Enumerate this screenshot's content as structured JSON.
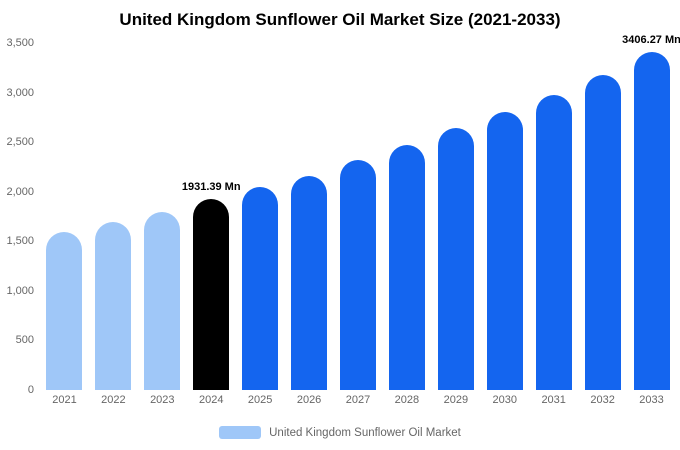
{
  "title": "United Kingdom Sunflower Oil Market Size (2021-2033)",
  "legend": {
    "label": "United Kingdom Sunflower Oil Market",
    "swatch_color": "#9fc7f8"
  },
  "colors": {
    "historical_bar": "#9fc7f8",
    "highlight_bar": "#000000",
    "forecast_bar": "#1465ef",
    "axis_text": "#666666",
    "title_text": "#000000"
  },
  "chart_data": {
    "type": "bar",
    "title": "United Kingdom Sunflower Oil Market Size (2021-2033)",
    "xlabel": "",
    "ylabel": "",
    "categories": [
      "2021",
      "2022",
      "2023",
      "2024",
      "2025",
      "2026",
      "2027",
      "2028",
      "2029",
      "2030",
      "2031",
      "2032",
      "2033"
    ],
    "values": [
      1590,
      1695,
      1800,
      1931.39,
      2045,
      2160,
      2320,
      2470,
      2640,
      2800,
      2975,
      3175,
      3406.27
    ],
    "bar_colors": [
      "#9fc7f8",
      "#9fc7f8",
      "#9fc7f8",
      "#000000",
      "#1465ef",
      "#1465ef",
      "#1465ef",
      "#1465ef",
      "#1465ef",
      "#1465ef",
      "#1465ef",
      "#1465ef",
      "#1465ef"
    ],
    "annotations": [
      {
        "index": 3,
        "text": "1931.39 Mn"
      },
      {
        "index": 12,
        "text": "3406.27 Mn"
      }
    ],
    "yticks": [
      0,
      500,
      1000,
      1500,
      2000,
      2500,
      3000,
      3500
    ],
    "ytick_labels": [
      "0",
      "500",
      "1,000",
      "1,500",
      "2,000",
      "2,500",
      "3,000",
      "3,500"
    ],
    "ylim": [
      0,
      3500
    ],
    "grid": false,
    "legend_position": "bottom",
    "legend_entries": [
      "United Kingdom Sunflower Oil Market"
    ]
  }
}
